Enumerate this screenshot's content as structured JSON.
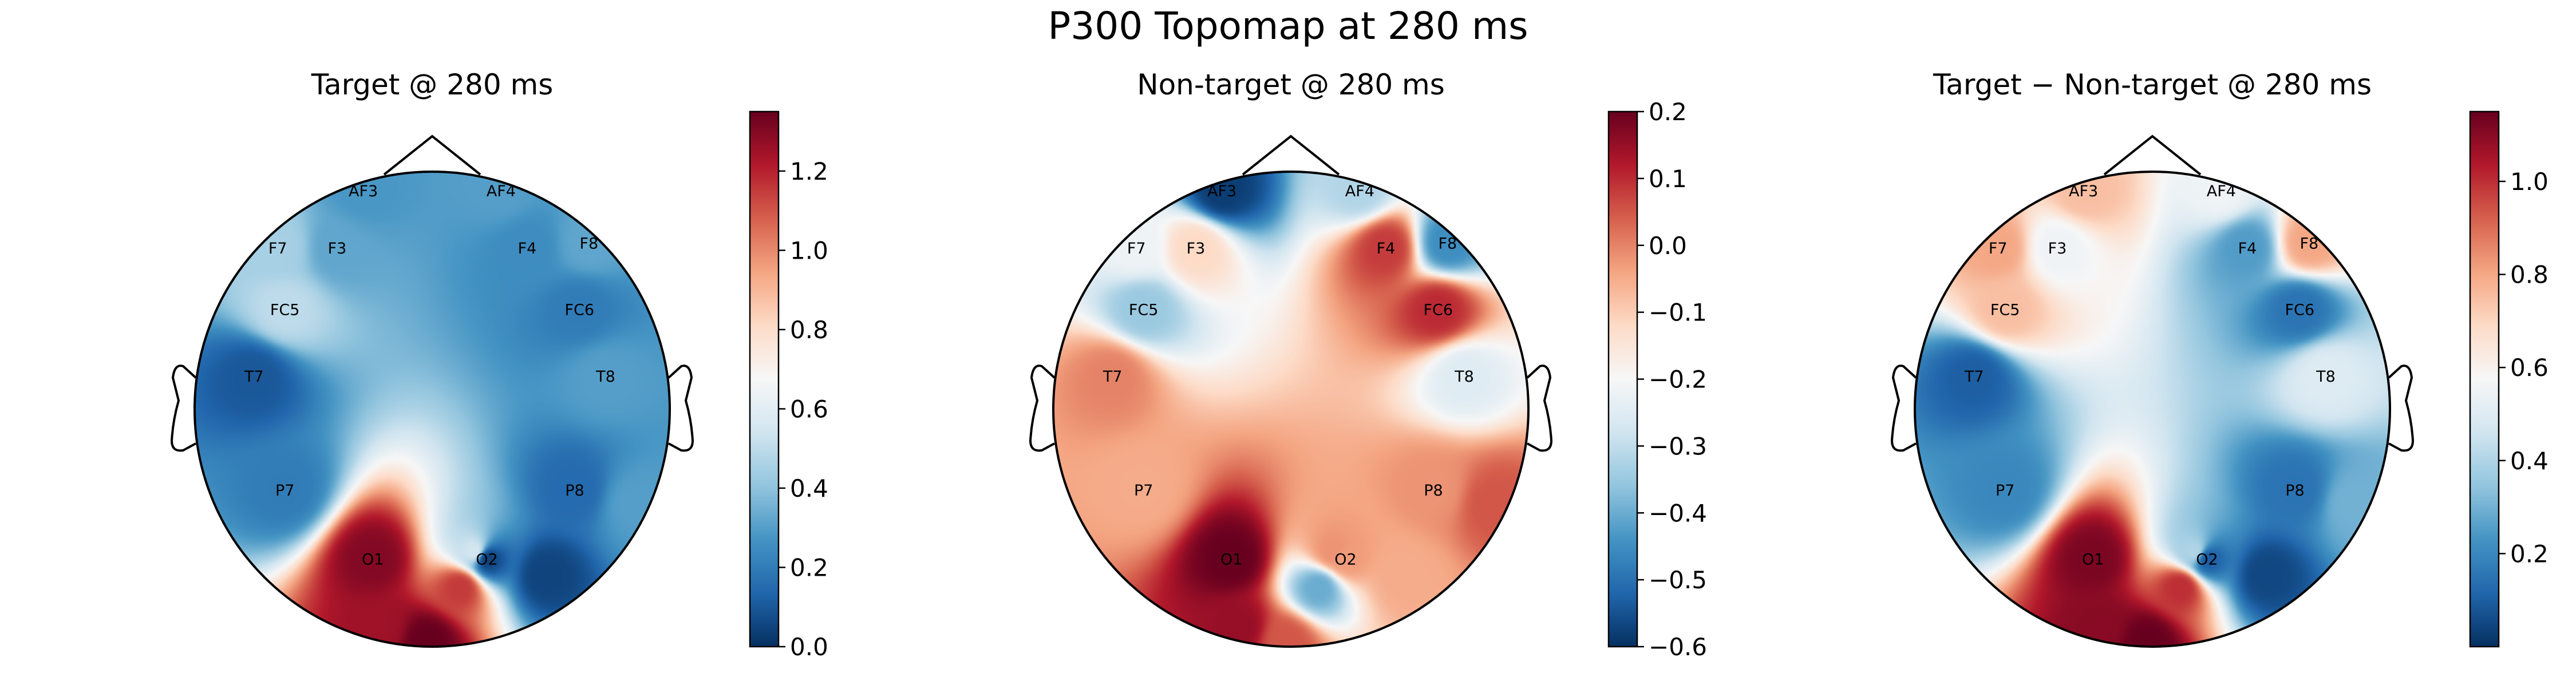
{
  "figure": {
    "title": "P300 Topomap at 280 ms"
  },
  "chart_data": [
    {
      "type": "heatmap",
      "subtype": "eeg-topomap",
      "title": "Target @ 280 ms",
      "colormap": "RdBu_r",
      "clim": [
        0.0,
        1.35
      ],
      "colorbar_ticks": [
        0.0,
        0.2,
        0.4,
        0.6,
        0.8,
        1.0,
        1.2
      ],
      "colorbar_tick_labels": [
        "0.0",
        "0.2",
        "0.4",
        "0.6",
        "0.8",
        "1.0",
        "1.2"
      ],
      "channels": [
        {
          "name": "AF3",
          "value": 0.28
        },
        {
          "name": "AF4",
          "value": 0.3
        },
        {
          "name": "F7",
          "value": 0.45
        },
        {
          "name": "F3",
          "value": 0.32
        },
        {
          "name": "F4",
          "value": 0.25
        },
        {
          "name": "F8",
          "value": 0.32
        },
        {
          "name": "FC5",
          "value": 0.5
        },
        {
          "name": "FC6",
          "value": 0.2
        },
        {
          "name": "T7",
          "value": 0.1
        },
        {
          "name": "T8",
          "value": 0.3
        },
        {
          "name": "P7",
          "value": 0.2
        },
        {
          "name": "P8",
          "value": 0.15
        },
        {
          "name": "O1",
          "value": 1.3
        },
        {
          "name": "O2",
          "value": 0.05
        }
      ],
      "extra_points": [
        {
          "value": 1.25
        },
        {
          "value": 1.35
        },
        {
          "value": 1.15
        },
        {
          "value": 0.55
        },
        {
          "value": 0.05
        },
        {
          "value": 0.3
        }
      ]
    },
    {
      "type": "heatmap",
      "subtype": "eeg-topomap",
      "title": "Non-target @ 280 ms",
      "colormap": "RdBu_r",
      "clim": [
        -0.6,
        0.2
      ],
      "colorbar_ticks": [
        -0.6,
        -0.5,
        -0.4,
        -0.3,
        -0.2,
        -0.1,
        0.0,
        0.1,
        0.2
      ],
      "colorbar_tick_labels": [
        "−0.6",
        "−0.5",
        "−0.4",
        "−0.3",
        "−0.2",
        "−0.1",
        "0.0",
        "0.1",
        "0.2"
      ],
      "channels": [
        {
          "name": "AF3",
          "value": -0.58
        },
        {
          "name": "AF4",
          "value": -0.32
        },
        {
          "name": "F7",
          "value": -0.22
        },
        {
          "name": "F3",
          "value": -0.12
        },
        {
          "name": "F4",
          "value": 0.08
        },
        {
          "name": "F8",
          "value": -0.45
        },
        {
          "name": "FC5",
          "value": -0.35
        },
        {
          "name": "FC6",
          "value": 0.1
        },
        {
          "name": "T7",
          "value": 0.0
        },
        {
          "name": "T8",
          "value": -0.25
        },
        {
          "name": "P7",
          "value": -0.05
        },
        {
          "name": "P8",
          "value": -0.02
        },
        {
          "name": "O1",
          "value": 0.2
        },
        {
          "name": "O2",
          "value": -0.03
        }
      ],
      "extra_points": [
        {
          "value": 0.15
        },
        {
          "value": 0.05
        },
        {
          "value": -0.4
        },
        {
          "value": -0.02
        },
        {
          "value": -0.05
        },
        {
          "value": 0.05
        }
      ]
    },
    {
      "type": "heatmap",
      "subtype": "eeg-topomap",
      "title": "Target − Non-target @ 280 ms",
      "colormap": "RdBu_r",
      "clim": [
        0.0,
        1.15
      ],
      "colorbar_ticks": [
        0.2,
        0.4,
        0.6,
        0.8,
        1.0
      ],
      "colorbar_tick_labels": [
        "0.2",
        "0.4",
        "0.6",
        "0.8",
        "1.0"
      ],
      "channels": [
        {
          "name": "AF3",
          "value": 0.75
        },
        {
          "name": "AF4",
          "value": 0.55
        },
        {
          "name": "F7",
          "value": 0.8
        },
        {
          "name": "F3",
          "value": 0.55
        },
        {
          "name": "F4",
          "value": 0.25
        },
        {
          "name": "F8",
          "value": 0.8
        },
        {
          "name": "FC5",
          "value": 0.75
        },
        {
          "name": "FC6",
          "value": 0.15
        },
        {
          "name": "T7",
          "value": 0.1
        },
        {
          "name": "T8",
          "value": 0.5
        },
        {
          "name": "P7",
          "value": 0.2
        },
        {
          "name": "P8",
          "value": 0.15
        },
        {
          "name": "O1",
          "value": 1.12
        },
        {
          "name": "O2",
          "value": 0.1
        }
      ],
      "extra_points": [
        {
          "value": 1.1
        },
        {
          "value": 1.15
        },
        {
          "value": 1.0
        },
        {
          "value": 0.4
        },
        {
          "value": 0.05
        },
        {
          "value": 0.3
        }
      ]
    }
  ]
}
